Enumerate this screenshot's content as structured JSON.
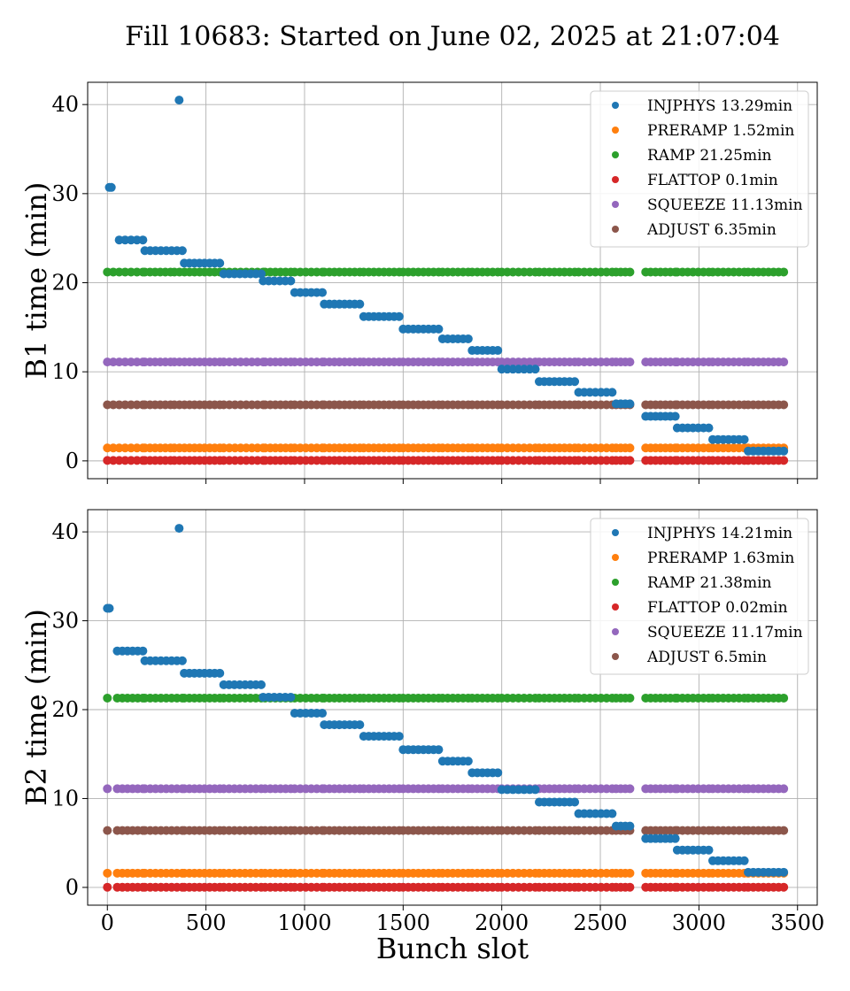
{
  "title": "Fill 10683: Started on June 02, 2025 at 21:07:04",
  "colors": {
    "INJPHYS": "#1f77b4",
    "PRERAMP": "#ff7f0e",
    "RAMP": "#2ca02c",
    "FLATTOP": "#d62728",
    "SQUEEZE": "#9467bd",
    "ADJUST": "#8c564b"
  },
  "chart_data": [
    {
      "type": "scatter",
      "xlabel": "",
      "ylabel": "B1 time (min)",
      "xlim": [
        -100,
        3600
      ],
      "ylim": [
        -2,
        42.5
      ],
      "xticks": [
        0,
        500,
        1000,
        1500,
        2000,
        2500,
        3000,
        3500
      ],
      "yticks": [
        0,
        10,
        20,
        30,
        40
      ],
      "legend_position": "top-right",
      "bunch_groups": [
        [
          0,
          30
        ],
        [
          60,
          180
        ],
        [
          190,
          320
        ],
        [
          340,
          570
        ],
        [
          590,
          790
        ],
        [
          800,
          930
        ],
        [
          950,
          1090
        ],
        [
          1100,
          1280
        ],
        [
          1300,
          1480
        ],
        [
          1500,
          1680
        ],
        [
          1700,
          1830
        ],
        [
          1850,
          1980
        ],
        [
          2000,
          2170
        ],
        [
          2190,
          2370
        ],
        [
          2390,
          2560
        ],
        [
          2580,
          2650
        ],
        [
          2730,
          2880
        ],
        [
          2890,
          3050
        ],
        [
          3070,
          3230
        ],
        [
          3250,
          3430
        ]
      ],
      "series": [
        {
          "name": "INJPHYS 13.29min",
          "phase": "INJPHYS",
          "points": [
            {
              "x": [
                10,
                20
              ],
              "y": 30.7
            },
            {
              "x": 364,
              "y": 40.5
            },
            {
              "x": [
                60,
                180
              ],
              "y": 24.8
            },
            {
              "x": [
                190,
                380
              ],
              "y": 23.6
            },
            {
              "x": [
                390,
                570
              ],
              "y": 22.2
            },
            {
              "x": [
                590,
                780
              ],
              "y": 21.0
            },
            {
              "x": [
                790,
                930
              ],
              "y": 20.2
            },
            {
              "x": [
                950,
                1090
              ],
              "y": 18.9
            },
            {
              "x": [
                1100,
                1280
              ],
              "y": 17.6
            },
            {
              "x": [
                1300,
                1480
              ],
              "y": 16.2
            },
            {
              "x": [
                1500,
                1680
              ],
              "y": 14.8
            },
            {
              "x": [
                1700,
                1830
              ],
              "y": 13.7
            },
            {
              "x": [
                1850,
                1980
              ],
              "y": 12.4
            },
            {
              "x": [
                2000,
                2170
              ],
              "y": 10.3
            },
            {
              "x": [
                2190,
                2370
              ],
              "y": 8.9
            },
            {
              "x": [
                2390,
                2560
              ],
              "y": 7.7
            },
            {
              "x": [
                2580,
                2650
              ],
              "y": 6.4
            },
            {
              "x": [
                2730,
                2880
              ],
              "y": 5.0
            },
            {
              "x": [
                2890,
                3050
              ],
              "y": 3.7
            },
            {
              "x": [
                3070,
                3230
              ],
              "y": 2.4
            },
            {
              "x": [
                3250,
                3430
              ],
              "y": 1.1
            }
          ]
        },
        {
          "name": "PRERAMP 1.52min",
          "phase": "PRERAMP",
          "level": 1.45
        },
        {
          "name": "RAMP 21.25min",
          "phase": "RAMP",
          "level": 21.2
        },
        {
          "name": "FLATTOP 0.1min",
          "phase": "FLATTOP",
          "level": 0.05
        },
        {
          "name": "SQUEEZE 11.13min",
          "phase": "SQUEEZE",
          "level": 11.1
        },
        {
          "name": "ADJUST 6.35min",
          "phase": "ADJUST",
          "level": 6.3
        }
      ]
    },
    {
      "type": "scatter",
      "xlabel": "Bunch slot",
      "ylabel": "B2 time (min)",
      "xlim": [
        -100,
        3600
      ],
      "ylim": [
        -2,
        42.5
      ],
      "xticks": [
        0,
        500,
        1000,
        1500,
        2000,
        2500,
        3000,
        3500
      ],
      "yticks": [
        0,
        10,
        20,
        30,
        40
      ],
      "legend_position": "top-right",
      "bunch_groups": [
        [
          0,
          0
        ],
        [
          50,
          180
        ],
        [
          190,
          380
        ],
        [
          390,
          570
        ],
        [
          590,
          780
        ],
        [
          800,
          930
        ],
        [
          950,
          1090
        ],
        [
          1100,
          1280
        ],
        [
          1300,
          1480
        ],
        [
          1500,
          1680
        ],
        [
          1700,
          1830
        ],
        [
          1850,
          1980
        ],
        [
          2000,
          2170
        ],
        [
          2190,
          2370
        ],
        [
          2390,
          2560
        ],
        [
          2580,
          2650
        ],
        [
          2730,
          2880
        ],
        [
          2890,
          3050
        ],
        [
          3070,
          3230
        ],
        [
          3250,
          3430
        ]
      ],
      "series": [
        {
          "name": "INJPHYS 14.21min",
          "phase": "INJPHYS",
          "points": [
            {
              "x": [
                0,
                10
              ],
              "y": 31.4
            },
            {
              "x": 364,
              "y": 40.4
            },
            {
              "x": [
                50,
                180
              ],
              "y": 26.6
            },
            {
              "x": [
                190,
                380
              ],
              "y": 25.5
            },
            {
              "x": [
                390,
                570
              ],
              "y": 24.1
            },
            {
              "x": [
                590,
                780
              ],
              "y": 22.8
            },
            {
              "x": [
                790,
                930
              ],
              "y": 21.4
            },
            {
              "x": [
                950,
                1090
              ],
              "y": 19.6
            },
            {
              "x": [
                1100,
                1280
              ],
              "y": 18.3
            },
            {
              "x": [
                1300,
                1480
              ],
              "y": 17.0
            },
            {
              "x": [
                1500,
                1680
              ],
              "y": 15.5
            },
            {
              "x": [
                1700,
                1830
              ],
              "y": 14.2
            },
            {
              "x": [
                1850,
                1980
              ],
              "y": 12.9
            },
            {
              "x": [
                2000,
                2170
              ],
              "y": 11.0
            },
            {
              "x": [
                2190,
                2370
              ],
              "y": 9.6
            },
            {
              "x": [
                2390,
                2560
              ],
              "y": 8.3
            },
            {
              "x": [
                2580,
                2650
              ],
              "y": 6.9
            },
            {
              "x": [
                2730,
                2880
              ],
              "y": 5.5
            },
            {
              "x": [
                2890,
                3050
              ],
              "y": 4.2
            },
            {
              "x": [
                3070,
                3230
              ],
              "y": 3.0
            },
            {
              "x": [
                3250,
                3430
              ],
              "y": 1.7
            }
          ]
        },
        {
          "name": "PRERAMP 1.63min",
          "phase": "PRERAMP",
          "level": 1.6
        },
        {
          "name": "RAMP 21.38min",
          "phase": "RAMP",
          "level": 21.3
        },
        {
          "name": "FLATTOP 0.02min",
          "phase": "FLATTOP",
          "level": 0.02
        },
        {
          "name": "SQUEEZE 11.17min",
          "phase": "SQUEEZE",
          "level": 11.1
        },
        {
          "name": "ADJUST 6.5min",
          "phase": "ADJUST",
          "level": 6.4
        }
      ]
    }
  ]
}
